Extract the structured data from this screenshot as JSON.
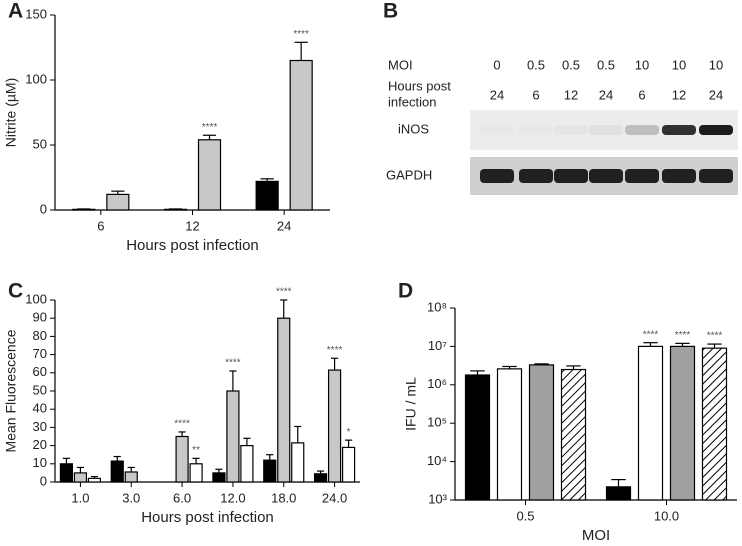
{
  "chart_data": [
    {
      "type": "bar",
      "label": "A",
      "ylabel": "Nitrite (µM)",
      "xlabel": "Hours post infection",
      "categories": [
        "6",
        "12",
        "24"
      ],
      "ylim": [
        0,
        150
      ],
      "yticks": [
        0,
        50,
        100,
        150
      ],
      "series": [
        {
          "color": "#000000",
          "values": [
            0.5,
            0.5,
            22
          ],
          "errors": [
            0.3,
            0.3,
            2
          ],
          "significance": [
            null,
            null,
            null
          ]
        },
        {
          "color": "#c8c8c8",
          "values": [
            12,
            54,
            115
          ],
          "errors": [
            2.5,
            3.5,
            14
          ],
          "significance": [
            null,
            "****",
            "****"
          ]
        }
      ]
    },
    {
      "type": "bar",
      "label": "C",
      "ylabel": "Mean Fluorescence",
      "xlabel": "Hours post infection",
      "categories": [
        "1.0",
        "3.0",
        "6.0",
        "12.0",
        "18.0",
        "24.0"
      ],
      "ylim": [
        0,
        100
      ],
      "yticks": [
        0,
        10,
        20,
        30,
        40,
        50,
        60,
        70,
        80,
        90,
        100
      ],
      "series": [
        {
          "color": "#000000",
          "values": [
            10,
            11.5,
            0,
            5,
            12,
            4.5
          ],
          "errors": [
            3,
            2.5,
            0,
            2,
            3,
            1.5
          ],
          "significance": [
            null,
            null,
            null,
            null,
            null,
            null
          ]
        },
        {
          "color": "#c8c8c8",
          "values": [
            5,
            5.5,
            25,
            50,
            90,
            61.5
          ],
          "errors": [
            3,
            2.5,
            2.5,
            11,
            10,
            6.5
          ],
          "significance": [
            null,
            null,
            "****",
            "****",
            "****",
            "****"
          ]
        },
        {
          "color": "#ffffff",
          "values": [
            2,
            0,
            10,
            20,
            21.5,
            19
          ],
          "errors": [
            1,
            0,
            3,
            4,
            9,
            4
          ],
          "significance": [
            null,
            null,
            "**",
            null,
            null,
            "*"
          ]
        }
      ]
    },
    {
      "type": "bar",
      "label": "D",
      "ylabel": "IFU / mL",
      "xlabel": "MOI",
      "log": true,
      "categories": [
        "0.5",
        "10.0"
      ],
      "ylim": [
        1000,
        100000000
      ],
      "yticks": [
        {
          "value": 1000,
          "label": "10³"
        },
        {
          "value": 10000,
          "label": "10⁴"
        },
        {
          "value": 100000,
          "label": "10⁵"
        },
        {
          "value": 1000000,
          "label": "10⁶"
        },
        {
          "value": 10000000,
          "label": "10⁷"
        },
        {
          "value": 100000000,
          "label": "10⁸"
        }
      ],
      "series": [
        {
          "color": "#000000",
          "values": [
            1800000,
            2200
          ],
          "errors": [
            500000,
            1200
          ],
          "significance": [
            null,
            null
          ]
        },
        {
          "color": "#ffffff",
          "values": [
            2600000,
            10000000
          ],
          "errors": [
            400000,
            2500000
          ],
          "significance": [
            null,
            "****"
          ]
        },
        {
          "color": "#a0a0a0",
          "values": [
            3300000,
            10000000
          ],
          "errors": [
            200000,
            2000000
          ],
          "significance": [
            null,
            "****"
          ]
        },
        {
          "color": "#ffffff",
          "pattern": "hatch",
          "values": [
            2500000,
            9000000
          ],
          "errors": [
            600000,
            2500000
          ],
          "significance": [
            null,
            "****"
          ]
        }
      ]
    }
  ],
  "blot": {
    "label": "B",
    "moi_label": "MOI",
    "moi": [
      "0",
      "0.5",
      "0.5",
      "0.5",
      "10",
      "10",
      "10"
    ],
    "hours_label_lines": [
      "Hours post",
      "infection"
    ],
    "hours": [
      "24",
      "6",
      "12",
      "24",
      "6",
      "12",
      "24"
    ],
    "bands": [
      "iNOS",
      "GAPDH"
    ]
  }
}
